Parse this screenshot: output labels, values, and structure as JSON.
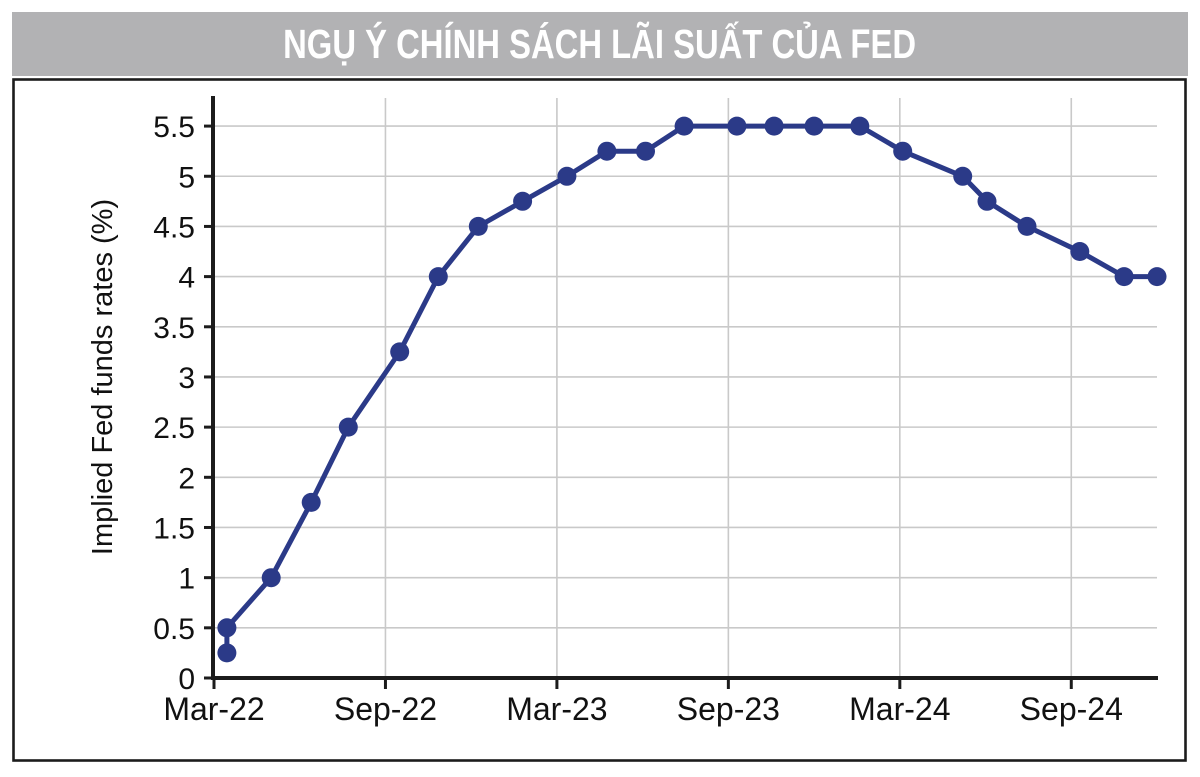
{
  "header": {
    "title": "NGỤ Ý CHÍNH SÁCH LÃI SUẤT CỦA FED"
  },
  "colors": {
    "title_bar_bg": "#b2b2b4",
    "title_text": "#ffffff",
    "axis": "#1c1c1c",
    "grid": "#c9c9c9",
    "tick_text": "#111111",
    "series_line": "#2b3a88"
  },
  "chart_data": {
    "type": "line",
    "title": "NGỤ Ý CHÍNH SÁCH LÃI SUẤT CỦA FED",
    "ylabel": "Implied Fed funds rates (%)",
    "x_range_months_after_Mar22": [
      0,
      33
    ],
    "ylim": [
      0,
      5.75
    ],
    "grid": {
      "horizontal": true,
      "vertical": true
    },
    "legend": "none",
    "y_ticks": [
      "0",
      "0.5",
      "1",
      "1.5",
      "2",
      "2.5",
      "3",
      "3.5",
      "4",
      "4.5",
      "5",
      "5.5"
    ],
    "x_ticks": [
      {
        "label": "Mar-22",
        "t": 0
      },
      {
        "label": "Sep-22",
        "t": 6
      },
      {
        "label": "Mar-23",
        "t": 12
      },
      {
        "label": "Sep-23",
        "t": 18
      },
      {
        "label": "Mar-24",
        "t": 24
      },
      {
        "label": "Sep-24",
        "t": 30
      }
    ],
    "series": [
      {
        "name": "Implied Fed funds rate (%)",
        "marker": "circle",
        "points": [
          {
            "date": "Mar-22",
            "t": 0.45,
            "value": 0.25
          },
          {
            "date": "Mar-22",
            "t": 0.45,
            "value": 0.5
          },
          {
            "date": "May-22",
            "t": 2.0,
            "value": 1.0
          },
          {
            "date": "Jun-22",
            "t": 3.4,
            "value": 1.75
          },
          {
            "date": "Jul-22",
            "t": 4.7,
            "value": 2.5
          },
          {
            "date": "Sep-22",
            "t": 6.5,
            "value": 3.25
          },
          {
            "date": "Nov-22",
            "t": 7.85,
            "value": 4.0
          },
          {
            "date": "Dec-22",
            "t": 9.25,
            "value": 4.5
          },
          {
            "date": "Feb-23",
            "t": 10.8,
            "value": 4.75
          },
          {
            "date": "Mar-23",
            "t": 12.35,
            "value": 5.0
          },
          {
            "date": "May-23",
            "t": 13.75,
            "value": 5.25
          },
          {
            "date": "Jun-23",
            "t": 15.1,
            "value": 5.25
          },
          {
            "date": "Jul-23",
            "t": 16.45,
            "value": 5.5
          },
          {
            "date": "Sep-23",
            "t": 18.3,
            "value": 5.5
          },
          {
            "date": "Nov-23",
            "t": 19.6,
            "value": 5.5
          },
          {
            "date": "Dec-23",
            "t": 21.0,
            "value": 5.5
          },
          {
            "date": "Jan-24",
            "t": 22.6,
            "value": 5.5
          },
          {
            "date": "Mar-24",
            "t": 24.1,
            "value": 5.25
          },
          {
            "date": "May-24",
            "t": 26.2,
            "value": 5.0
          },
          {
            "date": "Jun-24",
            "t": 27.05,
            "value": 4.75
          },
          {
            "date": "Jul-24",
            "t": 28.45,
            "value": 4.5
          },
          {
            "date": "Sep-24",
            "t": 30.3,
            "value": 4.25
          },
          {
            "date": "Nov-24",
            "t": 31.85,
            "value": 4.0
          },
          {
            "date": "Dec-24",
            "t": 33.0,
            "value": 4.0
          }
        ]
      }
    ]
  }
}
